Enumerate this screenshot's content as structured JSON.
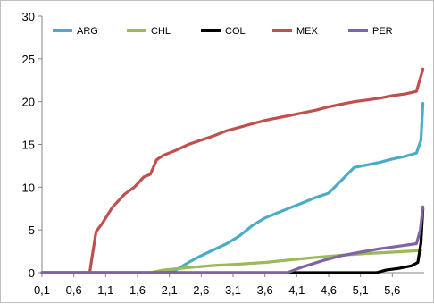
{
  "chart_data": {
    "type": "line",
    "title": "",
    "xlabel": "",
    "ylabel": "",
    "ylim": [
      0,
      30
    ],
    "yticks": [
      "0",
      "5",
      "10",
      "15",
      "20",
      "25",
      "30"
    ],
    "xlim": [
      0.1,
      6.1
    ],
    "xticks": [
      "0,1",
      "0,6",
      "1,1",
      "1,6",
      "2,1",
      "2,6",
      "3,1",
      "3,6",
      "4,1",
      "4,6",
      "5,1",
      "5,6"
    ],
    "grid": false,
    "legend_position": "top",
    "series": [
      {
        "name": "ARG",
        "color": "#4bacc6",
        "points": [
          [
            0.1,
            0
          ],
          [
            2.0,
            0
          ],
          [
            2.2,
            0.3
          ],
          [
            2.4,
            1.2
          ],
          [
            2.6,
            2.0
          ],
          [
            2.8,
            2.7
          ],
          [
            3.0,
            3.4
          ],
          [
            3.2,
            4.3
          ],
          [
            3.4,
            5.5
          ],
          [
            3.6,
            6.4
          ],
          [
            3.8,
            7.0
          ],
          [
            4.0,
            7.6
          ],
          [
            4.2,
            8.2
          ],
          [
            4.4,
            8.8
          ],
          [
            4.6,
            9.3
          ],
          [
            4.8,
            10.8
          ],
          [
            5.0,
            12.3
          ],
          [
            5.2,
            12.6
          ],
          [
            5.4,
            12.9
          ],
          [
            5.6,
            13.3
          ],
          [
            5.8,
            13.6
          ],
          [
            5.98,
            14.0
          ],
          [
            6.05,
            15.5
          ],
          [
            6.08,
            19.8
          ]
        ]
      },
      {
        "name": "CHL",
        "color": "#9bbb59",
        "points": [
          [
            0.1,
            0
          ],
          [
            1.8,
            0
          ],
          [
            2.0,
            0.3
          ],
          [
            2.4,
            0.6
          ],
          [
            2.8,
            0.85
          ],
          [
            3.2,
            1.0
          ],
          [
            3.6,
            1.2
          ],
          [
            4.0,
            1.5
          ],
          [
            4.4,
            1.8
          ],
          [
            4.8,
            2.05
          ],
          [
            5.2,
            2.25
          ],
          [
            5.6,
            2.4
          ],
          [
            6.05,
            2.6
          ]
        ]
      },
      {
        "name": "COL",
        "color": "#000000",
        "points": [
          [
            0.1,
            0
          ],
          [
            5.35,
            0
          ],
          [
            5.5,
            0.3
          ],
          [
            5.7,
            0.5
          ],
          [
            5.9,
            0.8
          ],
          [
            6.0,
            1.2
          ],
          [
            6.05,
            3.5
          ],
          [
            6.08,
            7.5
          ]
        ]
      },
      {
        "name": "MEX",
        "color": "#c0504d",
        "points": [
          [
            0.1,
            0
          ],
          [
            0.85,
            0
          ],
          [
            0.88,
            1.5
          ],
          [
            0.95,
            4.8
          ],
          [
            1.05,
            5.8
          ],
          [
            1.2,
            7.6
          ],
          [
            1.4,
            9.2
          ],
          [
            1.55,
            10.0
          ],
          [
            1.7,
            11.2
          ],
          [
            1.8,
            11.5
          ],
          [
            1.9,
            13.2
          ],
          [
            2.0,
            13.7
          ],
          [
            2.2,
            14.3
          ],
          [
            2.4,
            15.0
          ],
          [
            2.6,
            15.5
          ],
          [
            2.8,
            16.0
          ],
          [
            3.0,
            16.6
          ],
          [
            3.2,
            17.0
          ],
          [
            3.4,
            17.4
          ],
          [
            3.6,
            17.8
          ],
          [
            3.8,
            18.1
          ],
          [
            4.0,
            18.4
          ],
          [
            4.2,
            18.7
          ],
          [
            4.4,
            19.0
          ],
          [
            4.6,
            19.4
          ],
          [
            4.8,
            19.7
          ],
          [
            5.0,
            20.0
          ],
          [
            5.2,
            20.2
          ],
          [
            5.4,
            20.4
          ],
          [
            5.6,
            20.7
          ],
          [
            5.8,
            20.9
          ],
          [
            5.98,
            21.2
          ],
          [
            6.08,
            23.8
          ]
        ]
      },
      {
        "name": "PER",
        "color": "#8064a2",
        "points": [
          [
            0.1,
            0
          ],
          [
            3.95,
            0
          ],
          [
            4.2,
            0.7
          ],
          [
            4.5,
            1.4
          ],
          [
            4.8,
            2.0
          ],
          [
            5.1,
            2.4
          ],
          [
            5.4,
            2.8
          ],
          [
            5.7,
            3.1
          ],
          [
            5.98,
            3.4
          ],
          [
            6.04,
            5.0
          ],
          [
            6.08,
            7.7
          ]
        ]
      }
    ]
  }
}
